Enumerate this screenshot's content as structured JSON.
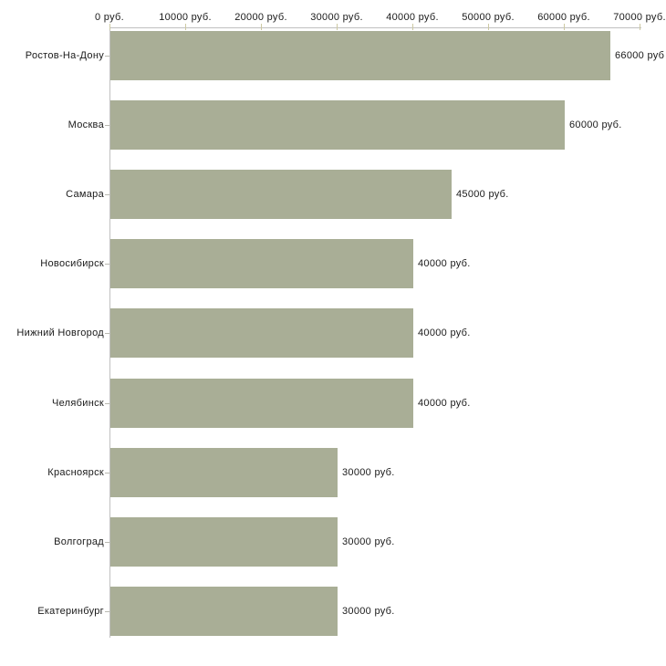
{
  "chart_data": {
    "type": "bar",
    "orientation": "horizontal",
    "title": "",
    "categories": [
      "Ростов-На-Дону",
      "Москва",
      "Самара",
      "Новосибирск",
      "Нижний Новгород",
      "Челябинск",
      "Красноярск",
      "Волгоград",
      "Екатеринбург"
    ],
    "values": [
      66000,
      60000,
      45000,
      40000,
      40000,
      40000,
      30000,
      30000,
      30000
    ],
    "value_labels": [
      "66000 руб",
      "60000 руб.",
      "45000 руб.",
      "40000 руб.",
      "40000 руб.",
      "40000 руб.",
      "30000 руб.",
      "30000 руб.",
      "30000 руб."
    ],
    "x_axis": {
      "position": "top",
      "tick_labels": [
        "0 руб.",
        "10000 руб.",
        "20000 руб.",
        "30000 руб.",
        "40000 руб.",
        "50000 руб.",
        "60000 руб.",
        "70000 руб."
      ],
      "tick_values": [
        0,
        10000,
        20000,
        30000,
        40000,
        50000,
        60000,
        70000
      ],
      "min": 0,
      "max": 70000
    },
    "ylabel": "",
    "xlabel": "",
    "grid": false,
    "legend": false,
    "colors": {
      "bar": "#a9ae96",
      "axis_line": "#c0c0c0",
      "x_tick": "#cdc9a3",
      "y_tick": "#b9b9b1",
      "text": "#1a1a1a",
      "background": "#ffffff"
    }
  }
}
